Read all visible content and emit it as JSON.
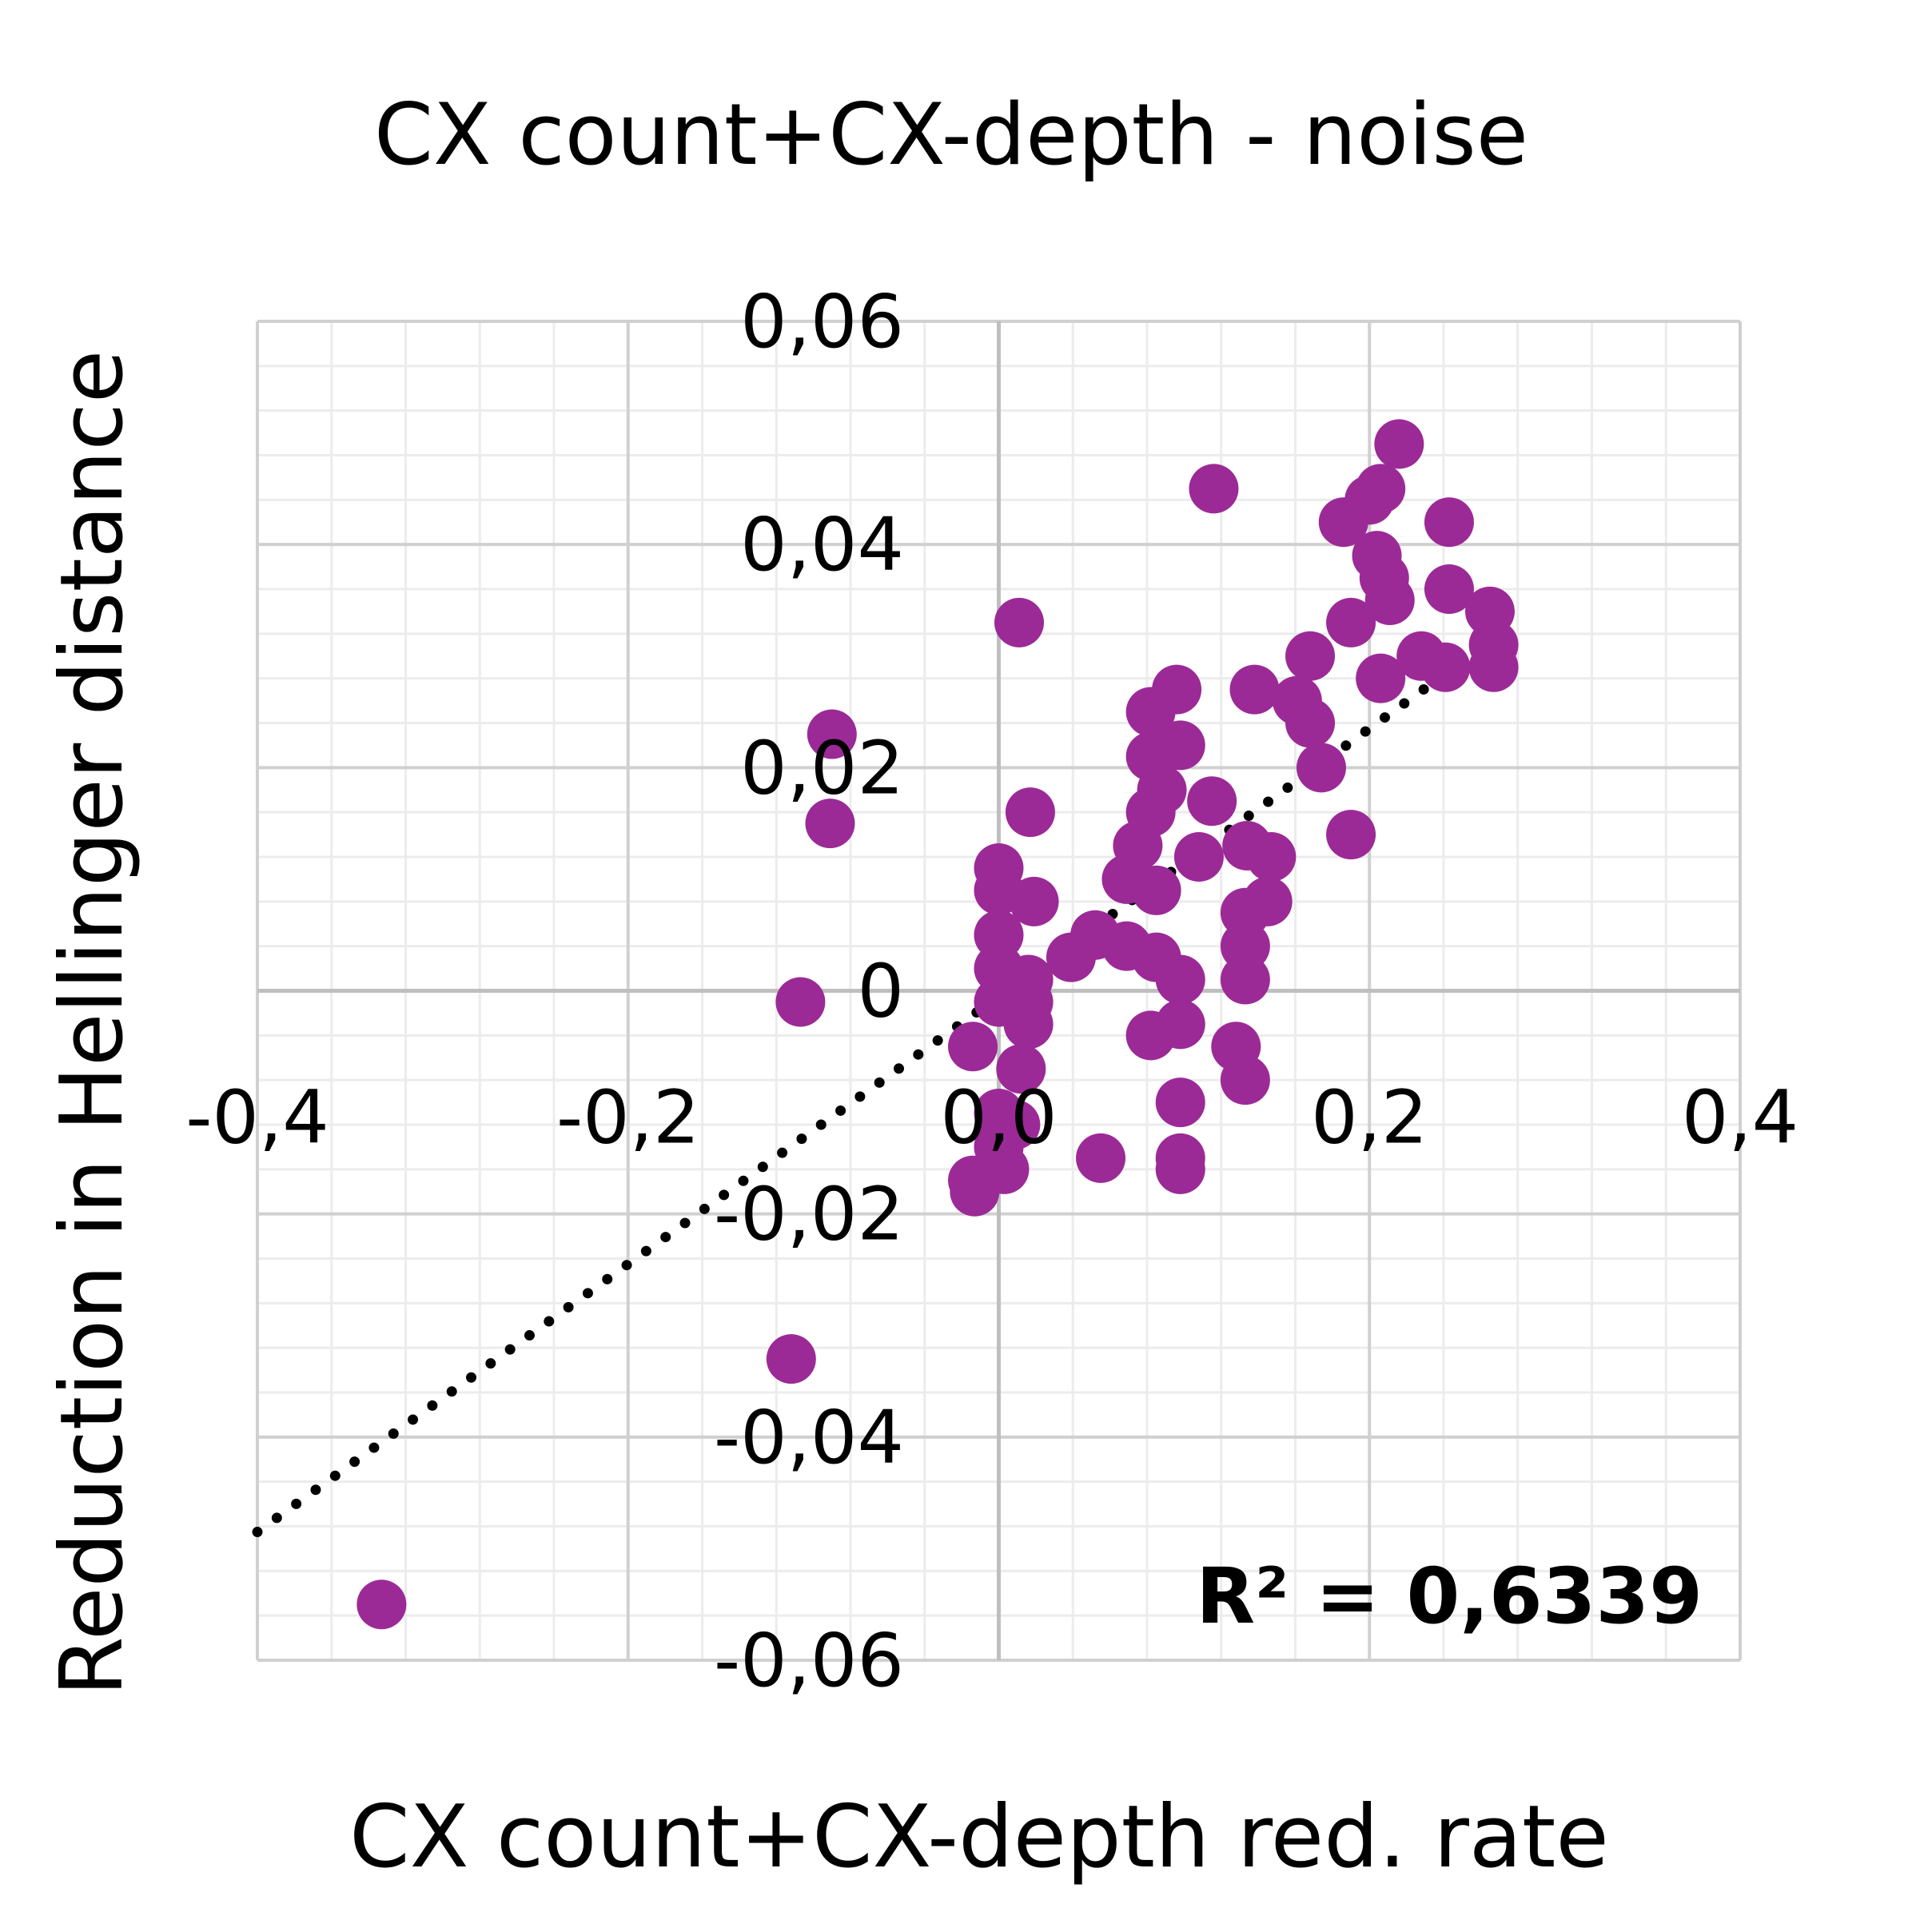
{
  "chart_data": {
    "type": "scatter",
    "title": "CX count+CX-depth - noise",
    "xlabel": "CX count+CX-depth red. rate",
    "ylabel": "Reduction in Hellinger distance",
    "xlim": [
      -0.4,
      0.4
    ],
    "ylim": [
      -0.06,
      0.06
    ],
    "x_ticks": [
      -0.4,
      -0.2,
      0.0,
      0.2,
      0.4
    ],
    "x_tick_labels": [
      "-0,4",
      "-0,2",
      "0,0",
      "0,2",
      "0,4"
    ],
    "y_ticks": [
      0.06,
      0.04,
      0.02,
      0,
      -0.02,
      -0.04,
      -0.06
    ],
    "y_tick_labels": [
      "0,06",
      "0,04",
      "0,02",
      "0",
      "-0,02",
      "-0,04",
      "-0,06"
    ],
    "grid": true,
    "marker_color": "#9B2A96",
    "trendline": {
      "type": "linear",
      "style": "dotted",
      "slope": 0.12,
      "intercept": -0.0005,
      "x_range": [
        -0.4,
        0.27
      ],
      "r2_label": "R² = 0,6339"
    },
    "series": [
      {
        "name": "points",
        "points": [
          [
            0.216,
            0.049
          ],
          [
            0.116,
            0.045
          ],
          [
            0.243,
            0.042
          ],
          [
            0.186,
            0.042
          ],
          [
            0.206,
            0.045
          ],
          [
            0.2,
            0.044
          ],
          [
            0.204,
            0.039
          ],
          [
            0.208,
            0.037
          ],
          [
            0.211,
            0.035
          ],
          [
            0.19,
            0.033
          ],
          [
            0.243,
            0.036
          ],
          [
            0.265,
            0.034
          ],
          [
            0.267,
            0.031
          ],
          [
            0.267,
            0.029
          ],
          [
            0.241,
            0.029
          ],
          [
            0.228,
            0.03
          ],
          [
            0.206,
            0.028
          ],
          [
            0.168,
            0.03
          ],
          [
            0.138,
            0.027
          ],
          [
            0.161,
            0.026
          ],
          [
            0.168,
            0.024
          ],
          [
            0.174,
            0.02
          ],
          [
            0.19,
            0.014
          ],
          [
            0.011,
            0.033
          ],
          [
            -0.09,
            0.023
          ],
          [
            -0.091,
            0.015
          ],
          [
            -0.107,
            -0.001
          ],
          [
            -0.112,
            -0.033
          ],
          [
            -0.333,
            -0.055
          ],
          [
            0.096,
            0.027
          ],
          [
            0.082,
            0.025
          ],
          [
            0.098,
            0.022
          ],
          [
            0.082,
            0.021
          ],
          [
            0.088,
            0.018
          ],
          [
            0.115,
            0.017
          ],
          [
            0.082,
            0.016
          ],
          [
            0.075,
            0.013
          ],
          [
            0.108,
            0.012
          ],
          [
            0.134,
            0.013
          ],
          [
            0.147,
            0.012
          ],
          [
            0.145,
            0.008
          ],
          [
            0.133,
            0.007
          ],
          [
            0.133,
            0.004
          ],
          [
            0.133,
            0.001
          ],
          [
            0.085,
            0.009
          ],
          [
            0.069,
            0.01
          ],
          [
            0.052,
            0.005
          ],
          [
            0.069,
            0.004
          ],
          [
            0.085,
            0.003
          ],
          [
            0.098,
            0.001
          ],
          [
            0.098,
            -0.003
          ],
          [
            0.082,
            -0.004
          ],
          [
            0.128,
            -0.005
          ],
          [
            0.133,
            -0.008
          ],
          [
            0.098,
            -0.01
          ],
          [
            0.098,
            -0.015
          ],
          [
            0.098,
            -0.016
          ],
          [
            0.055,
            -0.015
          ],
          [
            0.039,
            0.003
          ],
          [
            0.017,
            0.016
          ],
          [
            0,
            0.011
          ],
          [
            0,
            0.009
          ],
          [
            0.019,
            0.008
          ],
          [
            0,
            0.005
          ],
          [
            0,
            0.002
          ],
          [
            0.016,
            0.001
          ],
          [
            0,
            -0.001
          ],
          [
            0.016,
            -0.001
          ],
          [
            0.016,
            -0.003
          ],
          [
            -0.014,
            -0.005
          ],
          [
            0.012,
            -0.007
          ],
          [
            0,
            -0.011
          ],
          [
            0.009,
            -0.012
          ],
          [
            0,
            -0.014
          ],
          [
            0.003,
            -0.016
          ],
          [
            -0.014,
            -0.017
          ],
          [
            -0.013,
            -0.018
          ]
        ]
      }
    ]
  }
}
